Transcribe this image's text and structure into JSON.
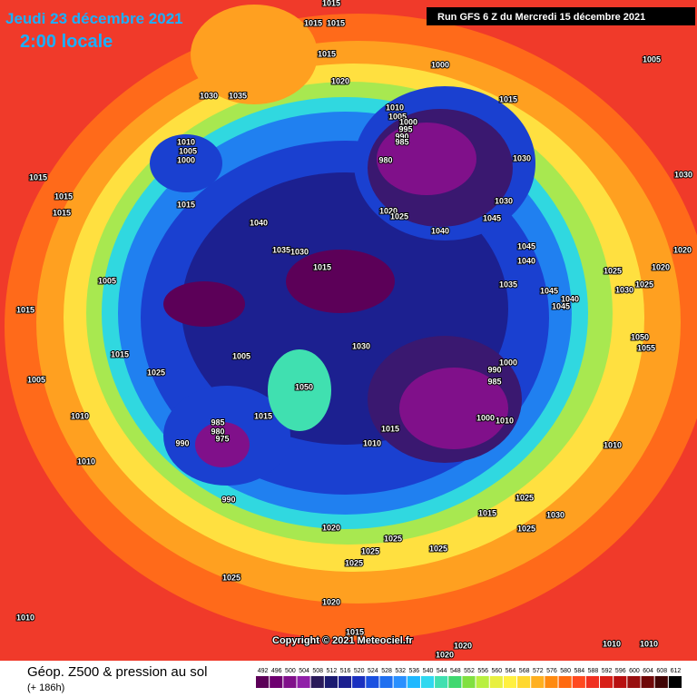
{
  "header": {
    "date": "Jeudi 23 décembre 2021",
    "time": "2:00 locale",
    "run": "Run GFS 6 Z du Mercredi 15 décembre 2021"
  },
  "map": {
    "isobar_labels": [
      1015,
      1015,
      1015,
      1015,
      1000,
      1020,
      1030,
      1035,
      1015,
      1010,
      1005,
      1000,
      1010,
      1005,
      1000,
      995,
      990,
      985,
      980,
      1030,
      1030,
      1045,
      1020,
      1025,
      1040,
      1015,
      1015,
      1015,
      1015,
      1040,
      1035,
      1030,
      1015,
      1045,
      1040,
      1025,
      1020,
      1025,
      1030,
      1035,
      1045,
      1040,
      1045,
      1005,
      1015,
      1050,
      1055,
      1015,
      1030,
      1005,
      1000,
      990,
      985,
      1025,
      1005,
      1050,
      1000,
      1010,
      1015,
      1010,
      1010,
      1010,
      985,
      980,
      975,
      990,
      1015,
      990,
      1025,
      1030,
      1015,
      1025,
      1020,
      1025,
      1025,
      1025,
      1025,
      1025,
      1020,
      1010,
      1010,
      1010,
      1010,
      1015,
      1020,
      1020,
      1005,
      1030,
      1020
    ],
    "copyright": "Copyright © 2021 Meteociel.fr"
  },
  "legend": {
    "title": "Géop. Z500 & pression au sol",
    "subtitle": "(+ 186h)",
    "values": [
      492,
      496,
      500,
      504,
      508,
      512,
      516,
      520,
      524,
      528,
      532,
      536,
      540,
      544,
      548,
      552,
      556,
      560,
      564,
      568,
      572,
      576,
      580,
      584,
      588,
      592,
      596,
      600,
      604,
      608,
      612
    ],
    "colors": [
      "#5c0058",
      "#6e0070",
      "#80108a",
      "#9020a8",
      "#2a1a5a",
      "#1a1a70",
      "#1c2090",
      "#1a30c0",
      "#1a50e0",
      "#2070f0",
      "#2a90ff",
      "#20b8ff",
      "#30d8f0",
      "#40e0b0",
      "#40d870",
      "#80e040",
      "#b8f040",
      "#e8f040",
      "#fff040",
      "#ffd830",
      "#ffb020",
      "#ff8a10",
      "#ff6a10",
      "#ff4a20",
      "#f03020",
      "#d82018",
      "#b81010",
      "#981010",
      "#700808",
      "#400404",
      "#000000"
    ]
  }
}
